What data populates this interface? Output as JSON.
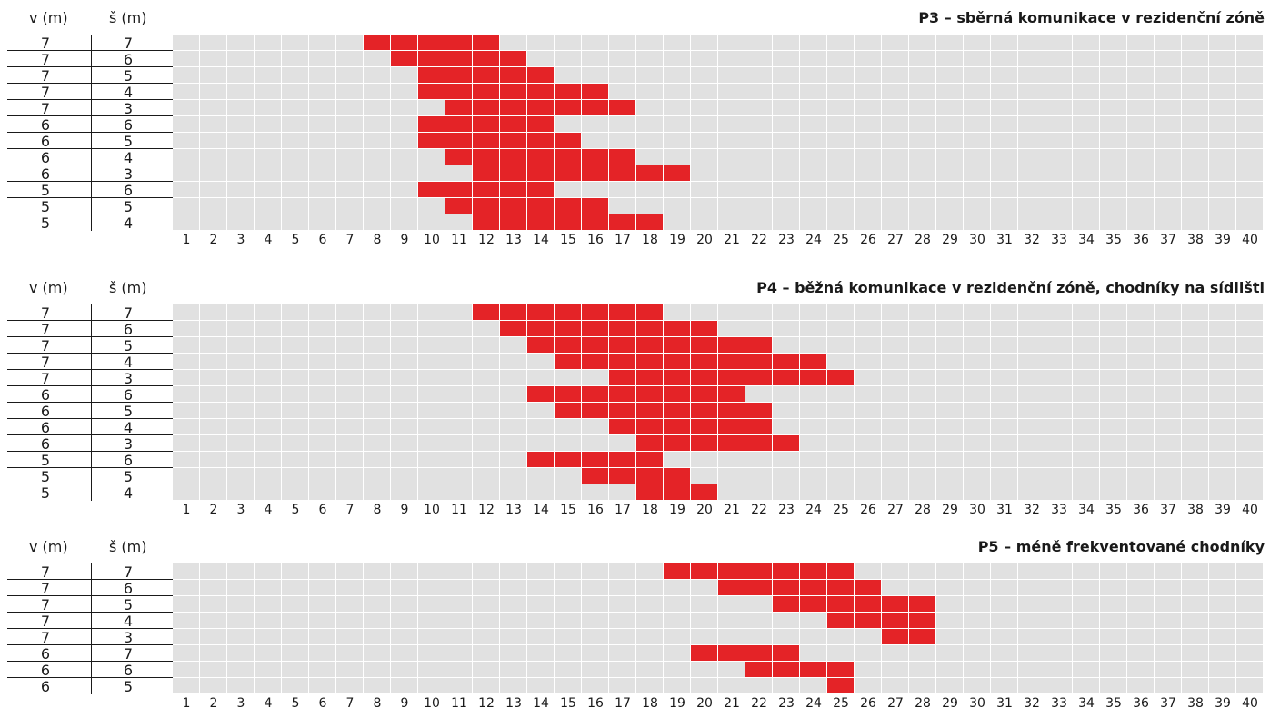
{
  "header_v": "v (m)",
  "header_s": "š (m)",
  "colors": {
    "filled": "#e42327",
    "empty": "#e1e1e1",
    "text": "#1a1a1a"
  },
  "chart_data": [
    {
      "type": "heatmap",
      "title": "P3 – sběrná komunikace v rezidenční zóně",
      "x": [
        1,
        2,
        3,
        4,
        5,
        6,
        7,
        8,
        9,
        10,
        11,
        12,
        13,
        14,
        15,
        16,
        17,
        18,
        19,
        20,
        21,
        22,
        23,
        24,
        25,
        26,
        27,
        28,
        29,
        30,
        31,
        32,
        33,
        34,
        35,
        36,
        37,
        38,
        39,
        40
      ],
      "rows": [
        {
          "v": "7",
          "s": "7",
          "from": 8,
          "to": 12
        },
        {
          "v": "7",
          "s": "6",
          "from": 9,
          "to": 13
        },
        {
          "v": "7",
          "s": "5",
          "from": 10,
          "to": 14
        },
        {
          "v": "7",
          "s": "4",
          "from": 10,
          "to": 16
        },
        {
          "v": "7",
          "s": "3",
          "from": 11,
          "to": 17
        },
        {
          "v": "6",
          "s": "6",
          "from": 10,
          "to": 14
        },
        {
          "v": "6",
          "s": "5",
          "from": 10,
          "to": 15
        },
        {
          "v": "6",
          "s": "4",
          "from": 11,
          "to": 17
        },
        {
          "v": "6",
          "s": "3",
          "from": 12,
          "to": 19
        },
        {
          "v": "5",
          "s": "6",
          "from": 10,
          "to": 14
        },
        {
          "v": "5",
          "s": "5",
          "from": 11,
          "to": 16
        },
        {
          "v": "5",
          "s": "4",
          "from": 12,
          "to": 18
        }
      ]
    },
    {
      "type": "heatmap",
      "title": "P4 – běžná komunikace v rezidenční zóně, chodníky na sídlišti",
      "x": [
        1,
        2,
        3,
        4,
        5,
        6,
        7,
        8,
        9,
        10,
        11,
        12,
        13,
        14,
        15,
        16,
        17,
        18,
        19,
        20,
        21,
        22,
        23,
        24,
        25,
        26,
        27,
        28,
        29,
        30,
        31,
        32,
        33,
        34,
        35,
        36,
        37,
        38,
        39,
        40
      ],
      "rows": [
        {
          "v": "7",
          "s": "7",
          "from": 12,
          "to": 18
        },
        {
          "v": "7",
          "s": "6",
          "from": 13,
          "to": 20
        },
        {
          "v": "7",
          "s": "5",
          "from": 14,
          "to": 22
        },
        {
          "v": "7",
          "s": "4",
          "from": 15,
          "to": 24
        },
        {
          "v": "7",
          "s": "3",
          "from": 17,
          "to": 25
        },
        {
          "v": "6",
          "s": "6",
          "from": 14,
          "to": 21
        },
        {
          "v": "6",
          "s": "5",
          "from": 15,
          "to": 22
        },
        {
          "v": "6",
          "s": "4",
          "from": 17,
          "to": 22
        },
        {
          "v": "6",
          "s": "3",
          "from": 18,
          "to": 23
        },
        {
          "v": "5",
          "s": "6",
          "from": 14,
          "to": 18
        },
        {
          "v": "5",
          "s": "5",
          "from": 16,
          "to": 19
        },
        {
          "v": "5",
          "s": "4",
          "from": 18,
          "to": 20
        }
      ]
    },
    {
      "type": "heatmap",
      "title": "P5 – méně frekventované chodníky",
      "x": [
        1,
        2,
        3,
        4,
        5,
        6,
        7,
        8,
        9,
        10,
        11,
        12,
        13,
        14,
        15,
        16,
        17,
        18,
        19,
        20,
        21,
        22,
        23,
        24,
        25,
        26,
        27,
        28,
        29,
        30,
        31,
        32,
        33,
        34,
        35,
        36,
        37,
        38,
        39,
        40
      ],
      "rows": [
        {
          "v": "7",
          "s": "7",
          "from": 19,
          "to": 25
        },
        {
          "v": "7",
          "s": "6",
          "from": 21,
          "to": 26
        },
        {
          "v": "7",
          "s": "5",
          "from": 23,
          "to": 28
        },
        {
          "v": "7",
          "s": "4",
          "from": 25,
          "to": 28
        },
        {
          "v": "7",
          "s": "3",
          "from": 27,
          "to": 28
        },
        {
          "v": "6",
          "s": "7",
          "from": 20,
          "to": 23
        },
        {
          "v": "6",
          "s": "6",
          "from": 22,
          "to": 25
        },
        {
          "v": "6",
          "s": "5",
          "from": 25,
          "to": 25
        }
      ]
    }
  ]
}
